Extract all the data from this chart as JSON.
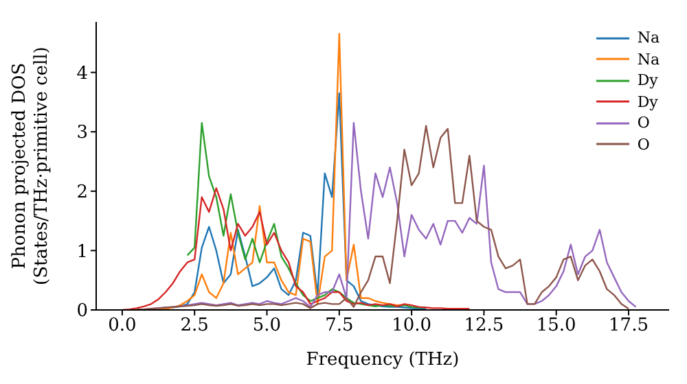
{
  "chart_data": {
    "type": "line",
    "xlabel": "Frequency (THz)",
    "ylabel": "Phonon projected DOS\n(States/THz·primitive cell)",
    "legend": "top right",
    "x": [
      0,
      0.25,
      0.5,
      0.75,
      1,
      1.25,
      1.5,
      1.75,
      2,
      2.25,
      2.5,
      2.75,
      3,
      3.25,
      3.5,
      3.75,
      4,
      4.25,
      4.5,
      4.75,
      5,
      5.25,
      5.5,
      5.75,
      6,
      6.25,
      6.5,
      6.75,
      7,
      7.25,
      7.5,
      7.75,
      8,
      8.25,
      8.5,
      8.75,
      9,
      9.25,
      9.5,
      9.75,
      10,
      10.25,
      10.5,
      10.75,
      11,
      11.25,
      11.5,
      11.75,
      12,
      12.25,
      12.5,
      12.75,
      13,
      13.25,
      13.5,
      13.75,
      14,
      14.25,
      14.5,
      14.75,
      15,
      15.25,
      15.5,
      15.75,
      16,
      16.25,
      16.5,
      16.75,
      17,
      17.25,
      17.5,
      17.75
    ],
    "xlim": [
      -0.9,
      18.9
    ],
    "xticks": [
      {
        "value": 0,
        "label": "0.0"
      },
      {
        "value": 2.5,
        "label": "2.5"
      },
      {
        "value": 5,
        "label": "5.0"
      },
      {
        "value": 7.5,
        "label": "7.5"
      },
      {
        "value": 10,
        "label": "10.0"
      },
      {
        "value": 12.5,
        "label": "12.5"
      },
      {
        "value": 15,
        "label": "15.0"
      },
      {
        "value": 17.5,
        "label": "17.5"
      }
    ],
    "ylim": [
      0,
      4.85
    ],
    "yticks": [
      0,
      1,
      2,
      3,
      4
    ],
    "series": [
      {
        "name": "Na",
        "color": "#1f77b4",
        "values": [
          null,
          null,
          null,
          null,
          null,
          null,
          null,
          0.04,
          0.06,
          0.1,
          0.3,
          1.05,
          1.4,
          1.0,
          0.45,
          0.6,
          1.35,
          0.9,
          0.4,
          0.45,
          0.55,
          0.7,
          0.35,
          0.25,
          0.5,
          1.3,
          1.25,
          0.25,
          2.3,
          1.9,
          3.65,
          0.5,
          0.4,
          0.15,
          0.1,
          0.08,
          0.06,
          0.05,
          0.05,
          0.04,
          0.03,
          0.02,
          0.02,
          null,
          null,
          null,
          null,
          null,
          null,
          null,
          null,
          null,
          null,
          null,
          null,
          null,
          null,
          null,
          null,
          null,
          null,
          null,
          null,
          null,
          null,
          null,
          null,
          null,
          null,
          null,
          null,
          null
        ]
      },
      {
        "name": "Na",
        "color": "#ff7f0e",
        "values": [
          null,
          null,
          null,
          null,
          null,
          0.01,
          0.02,
          0.04,
          0.08,
          0.15,
          0.25,
          0.6,
          0.3,
          0.2,
          0.45,
          1.3,
          0.6,
          0.7,
          0.8,
          1.75,
          0.8,
          0.8,
          0.5,
          0.3,
          0.25,
          1.2,
          1.15,
          0.1,
          0.9,
          1.0,
          4.65,
          0.5,
          1.1,
          0.2,
          0.2,
          0.15,
          0.12,
          0.1,
          0.08,
          0.08,
          null,
          null,
          null,
          null,
          null,
          null,
          null,
          null,
          null,
          null,
          null,
          null,
          null,
          null,
          null,
          null,
          null,
          null,
          null,
          null,
          null,
          null,
          null,
          null,
          null,
          null,
          null,
          null,
          null,
          null,
          null,
          null
        ]
      },
      {
        "name": "Dy",
        "color": "#2ca02c",
        "values": [
          null,
          null,
          null,
          null,
          null,
          null,
          null,
          null,
          null,
          0.92,
          1.05,
          3.15,
          2.25,
          1.9,
          1.25,
          1.95,
          1.3,
          0.85,
          1.2,
          0.8,
          1.15,
          1.45,
          0.9,
          0.7,
          0.45,
          0.25,
          0.15,
          0.2,
          0.25,
          0.35,
          0.3,
          0.2,
          0.12,
          0.1,
          0.08,
          0.06,
          0.08,
          0.07,
          0.06,
          0.08,
          0.05,
          0.04,
          0.04,
          null,
          null,
          null,
          null,
          null,
          null,
          null,
          null,
          null,
          null,
          null,
          null,
          null,
          null,
          null,
          null,
          null,
          null,
          null,
          null,
          null,
          null,
          null,
          null,
          null,
          null,
          null,
          null,
          null
        ]
      },
      {
        "name": "Dy",
        "color": "#d62728",
        "values": [
          0,
          0.01,
          0.03,
          0.06,
          0.1,
          0.18,
          0.3,
          0.45,
          0.65,
          0.8,
          0.85,
          1.9,
          1.65,
          2.05,
          1.7,
          1.0,
          1.45,
          1.25,
          1.4,
          1.65,
          1.1,
          1.3,
          1.0,
          0.8,
          0.4,
          0.3,
          0.1,
          0.15,
          0.2,
          0.3,
          0.3,
          0.15,
          0.1,
          0.12,
          0.08,
          0.1,
          0.08,
          0.1,
          0.06,
          0.1,
          0.08,
          0.05,
          0.04,
          0.03,
          0.03,
          0.02,
          0.02,
          0.02,
          0.02,
          null,
          null,
          null,
          null,
          null,
          null,
          null,
          null,
          null,
          null,
          null,
          null,
          null,
          null,
          null,
          null,
          null,
          null,
          null,
          null,
          null,
          null,
          null
        ]
      },
      {
        "name": "O",
        "color": "#9467bd",
        "values": [
          null,
          null,
          0.01,
          0.01,
          0.02,
          0.03,
          0.04,
          0.05,
          0.06,
          0.08,
          0.1,
          0.12,
          0.1,
          0.08,
          0.1,
          0.12,
          0.08,
          0.1,
          0.12,
          0.1,
          0.15,
          0.12,
          0.1,
          0.15,
          0.2,
          0.15,
          0.05,
          0.25,
          0.3,
          0.3,
          0.6,
          0.2,
          3.15,
          2.0,
          1.2,
          2.3,
          1.9,
          2.4,
          1.8,
          0.9,
          1.6,
          1.35,
          1.2,
          1.45,
          1.1,
          1.5,
          1.5,
          1.3,
          1.55,
          1.45,
          2.43,
          0.8,
          0.35,
          0.3,
          0.3,
          0.3,
          0.1,
          0.1,
          0.15,
          0.25,
          0.4,
          0.65,
          1.1,
          0.6,
          0.9,
          1.0,
          1.35,
          0.8,
          0.55,
          0.3,
          0.15,
          0.05
        ]
      },
      {
        "name": "O",
        "color": "#8c564b",
        "values": [
          null,
          null,
          0.01,
          0.01,
          0.02,
          0.03,
          0.04,
          0.05,
          0.06,
          0.07,
          0.08,
          0.1,
          0.08,
          0.07,
          0.08,
          0.1,
          0.07,
          0.08,
          0.1,
          0.08,
          0.1,
          0.1,
          0.08,
          0.1,
          0.12,
          0.1,
          0.03,
          0.1,
          0.12,
          0.1,
          0.1,
          0.2,
          0.05,
          0.3,
          0.5,
          0.9,
          0.9,
          0.45,
          1.5,
          2.7,
          2.1,
          2.3,
          3.1,
          2.4,
          2.9,
          3.05,
          1.8,
          1.8,
          2.6,
          1.5,
          1.4,
          1.35,
          0.9,
          0.7,
          0.75,
          0.85,
          0.1,
          0.1,
          0.3,
          0.4,
          0.55,
          0.85,
          0.9,
          0.5,
          0.75,
          0.85,
          0.65,
          0.35,
          0.25,
          0.1,
          0.02,
          null
        ]
      }
    ]
  }
}
